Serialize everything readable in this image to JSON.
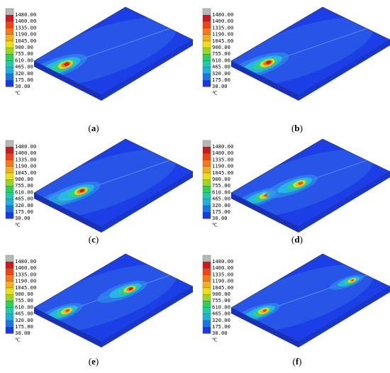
{
  "legend": {
    "values": [
      "1480.00",
      "1400.00",
      "1335.00",
      "1190.00",
      "1045.00",
      "900.00",
      "755.00",
      "610.00",
      "465.00",
      "320.00",
      "175.00",
      "30.00"
    ],
    "colors": [
      "#b8b8b8",
      "#cc1a1a",
      "#ee4418",
      "#f47a1e",
      "#f2b01e",
      "#e8df22",
      "#9ad628",
      "#2fd05a",
      "#21c9b0",
      "#22aee0",
      "#1f72e2",
      "#1b38e0"
    ],
    "unit": "℃"
  },
  "panels": [
    {
      "label": "a",
      "sources": [
        {
          "pos": 0.12,
          "size": 1.0,
          "hot": true
        }
      ]
    },
    {
      "label": "b",
      "sources": [
        {
          "pos": 0.16,
          "size": 1.0,
          "hot": true
        }
      ]
    },
    {
      "label": "c",
      "sources": [
        {
          "pos": 0.12,
          "size": 0.8,
          "hot": false
        },
        {
          "pos": 0.25,
          "size": 0.9,
          "hot": true
        }
      ]
    },
    {
      "label": "d",
      "sources": [
        {
          "pos": 0.14,
          "size": 0.75,
          "hot": false
        },
        {
          "pos": 0.43,
          "size": 0.85,
          "hot": false
        }
      ]
    },
    {
      "label": "e",
      "sources": [
        {
          "pos": 0.13,
          "size": 0.75,
          "hot": false
        },
        {
          "pos": 0.66,
          "size": 0.8,
          "hot": true
        }
      ]
    },
    {
      "label": "f",
      "sources": [
        {
          "pos": 0.13,
          "size": 0.75,
          "hot": false
        },
        {
          "pos": 0.87,
          "size": 0.55,
          "hot": false
        }
      ]
    }
  ]
}
